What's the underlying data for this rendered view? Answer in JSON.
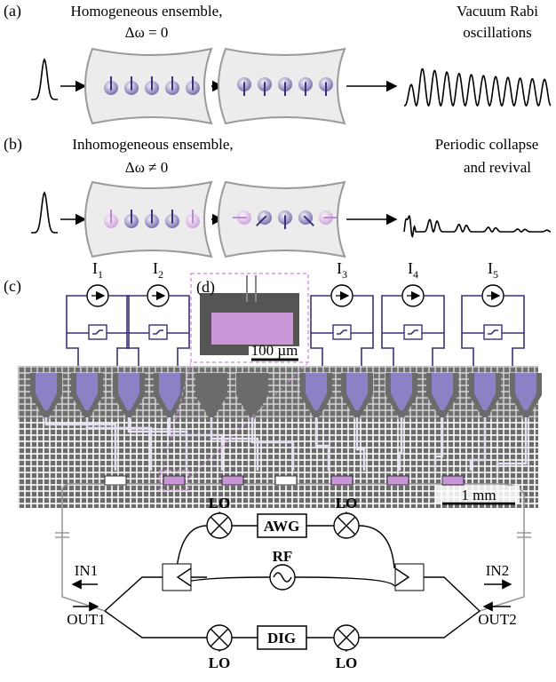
{
  "panel_a": {
    "label": "(a)",
    "title": [
      "Homogeneous ensemble,",
      "Δω = 0"
    ],
    "result": [
      "Vacuum Rabi",
      "oscillations"
    ]
  },
  "panel_b": {
    "label": "(b)",
    "title": [
      "Inhomogeneous ensemble,",
      "Δω ≠ 0"
    ],
    "result": [
      "Periodic collapse",
      "and revival"
    ]
  },
  "panel_c": {
    "label": "(c)",
    "current_sources": [
      {
        "symbol": "I",
        "index": "1"
      },
      {
        "symbol": "I",
        "index": "2"
      },
      {
        "symbol": "I",
        "index": "3"
      },
      {
        "symbol": "I",
        "index": "4"
      },
      {
        "symbol": "I",
        "index": "5"
      }
    ],
    "inset": {
      "label": "(d)",
      "scale_bar": "100 µm"
    },
    "scale_bar": "1 mm",
    "circuit": {
      "lo": [
        "LO",
        "LO",
        "LO",
        "LO"
      ],
      "awg": "AWG",
      "rf": "RF",
      "dig": "DIG",
      "in1": "IN1",
      "out1": "OUT1",
      "in2": "IN2",
      "out2": "OUT2"
    }
  }
}
